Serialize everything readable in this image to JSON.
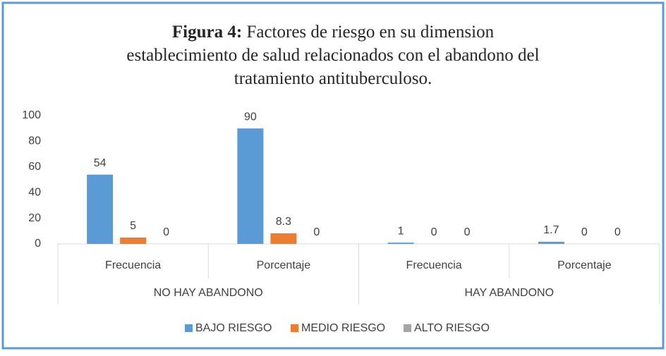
{
  "chart_data": {
    "type": "bar",
    "title_label": "Figura 4:",
    "title_lines": [
      "Factores de riesgo en su dimension",
      "establecimiento de salud relacionados con el abandono del",
      "tratamiento antituberculoso."
    ],
    "categories": [
      "Frecuencia",
      "Porcentaje",
      "Frecuencia",
      "Porcentaje"
    ],
    "groups": [
      "NO HAY ABANDONO",
      "HAY ABANDONO"
    ],
    "series": [
      {
        "name": "BAJO RIESGO",
        "color": "#5b9bd5",
        "values": [
          54,
          90,
          1,
          1.7
        ]
      },
      {
        "name": "MEDIO RIESGO",
        "color": "#ed7d31",
        "values": [
          5,
          8.3,
          0,
          0
        ]
      },
      {
        "name": "ALTO RIESGO",
        "color": "#a5a5a5",
        "values": [
          0,
          0,
          0,
          0
        ]
      }
    ],
    "ylim": [
      0,
      100
    ],
    "yticks": [
      0,
      20,
      40,
      60,
      80,
      100
    ],
    "grid": false,
    "legend": "bottom"
  }
}
